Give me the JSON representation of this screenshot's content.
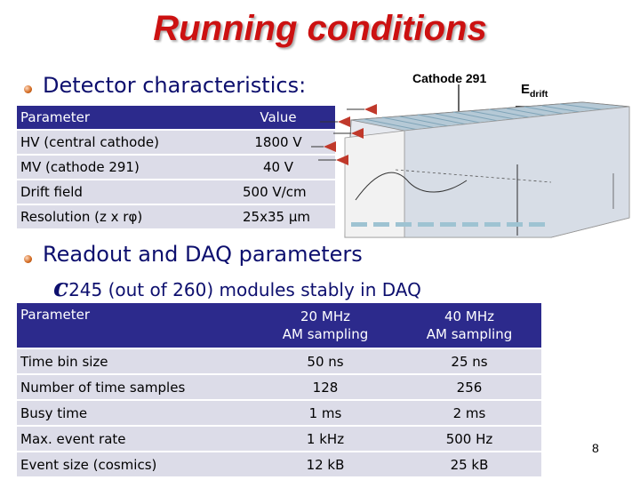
{
  "title": "Running conditions",
  "detector": {
    "heading": "Detector characteristics:",
    "table": {
      "header": [
        "Parameter",
        "Value"
      ],
      "rows": [
        [
          "HV (central cathode)",
          "1800 V"
        ],
        [
          "MV (cathode 291)",
          "40 V"
        ],
        [
          "Drift field",
          "500 V/cm"
        ],
        [
          "Resolution (z x rφ)",
          "25x35 µm"
        ]
      ]
    }
  },
  "figure": {
    "cathode_label": "Cathode 291",
    "edrift_main": "E",
    "edrift_sub": "drift",
    "colors": {
      "arrows": "#c0392b",
      "body": "#cfd6e2",
      "stripes": "#8fb7c7"
    }
  },
  "readout": {
    "heading": "Readout and DAQ parameters",
    "subbullet_glyph": "c",
    "subbullet_text": "245 (out of 260) modules stably in DAQ",
    "table": {
      "header": [
        "Parameter",
        "20 MHz\nAM sampling",
        "40 MHz\nAM sampling"
      ],
      "rows": [
        [
          "Time bin size",
          "50 ns",
          "25 ns"
        ],
        [
          "Number of time samples",
          "128",
          "256"
        ],
        [
          "Busy time",
          "1 ms",
          "2 ms"
        ],
        [
          "Max. event rate",
          "1 kHz",
          "500 Hz"
        ],
        [
          "Event size (cosmics)",
          "12 kB",
          "25 kB"
        ]
      ]
    }
  },
  "page_number": "8"
}
